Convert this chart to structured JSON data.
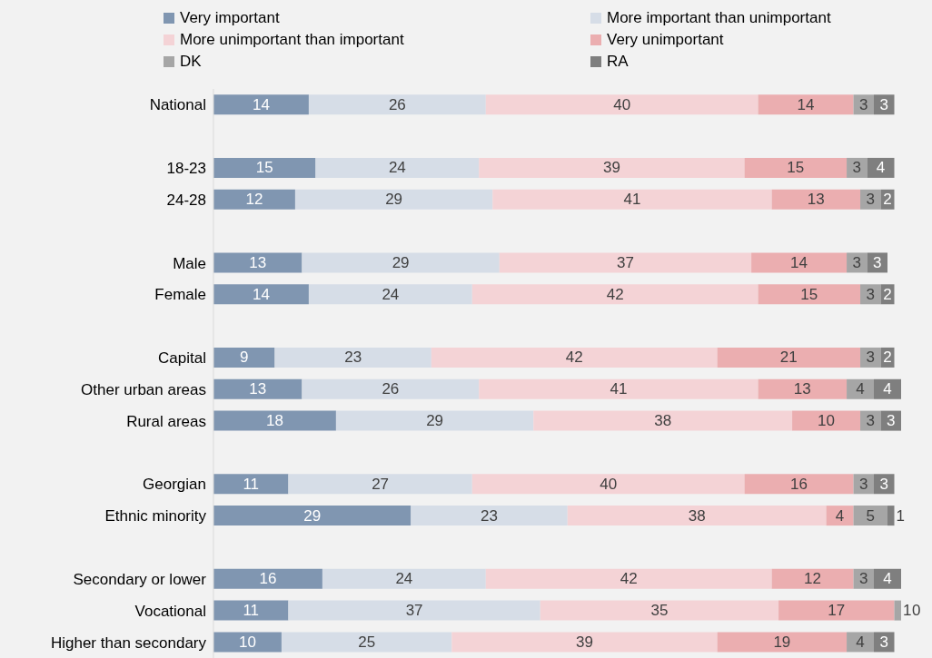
{
  "chart_data": {
    "type": "bar",
    "orientation": "horizontal",
    "stacked": true,
    "data_labels": true,
    "legend": "top",
    "grid": false,
    "tick_labels": "y",
    "xlim": [
      0,
      101
    ],
    "categories": [
      "National",
      null,
      "18-23",
      "24-28",
      null,
      "Male",
      "Female",
      null,
      "Capital",
      "Other urban areas",
      "Rural areas",
      null,
      "Georgian",
      "Ethnic minority",
      null,
      "Secondary or lower",
      "Vocational",
      "Higher than secondary"
    ],
    "series": [
      {
        "name": "Very important",
        "color": "#8096b1",
        "values": [
          14,
          null,
          15,
          12,
          null,
          13,
          14,
          null,
          9,
          13,
          18,
          null,
          11,
          29,
          null,
          16,
          11,
          10
        ]
      },
      {
        "name": "More important than unimportant",
        "color": "#d6dde7",
        "values": [
          26,
          null,
          24,
          29,
          null,
          29,
          24,
          null,
          23,
          26,
          29,
          null,
          27,
          23,
          null,
          24,
          37,
          25
        ]
      },
      {
        "name": "More unimportant than important",
        "color": "#f4d3d6",
        "values": [
          40,
          null,
          39,
          41,
          null,
          37,
          42,
          null,
          42,
          41,
          38,
          null,
          40,
          38,
          null,
          42,
          35,
          39
        ]
      },
      {
        "name": "Very unimportant",
        "color": "#ebaeb0",
        "values": [
          14,
          null,
          15,
          13,
          null,
          14,
          15,
          null,
          21,
          13,
          10,
          null,
          16,
          4,
          null,
          12,
          17,
          19
        ]
      },
      {
        "name": "DK",
        "color": "#a6a6a6",
        "values": [
          3,
          null,
          3,
          3,
          null,
          3,
          3,
          null,
          3,
          4,
          3,
          null,
          3,
          5,
          null,
          3,
          1,
          4
        ]
      },
      {
        "name": "RA",
        "color": "#7f7f7f",
        "values": [
          3,
          null,
          4,
          2,
          null,
          3,
          2,
          null,
          2,
          4,
          3,
          null,
          3,
          1,
          null,
          4,
          0,
          3
        ]
      }
    ]
  }
}
